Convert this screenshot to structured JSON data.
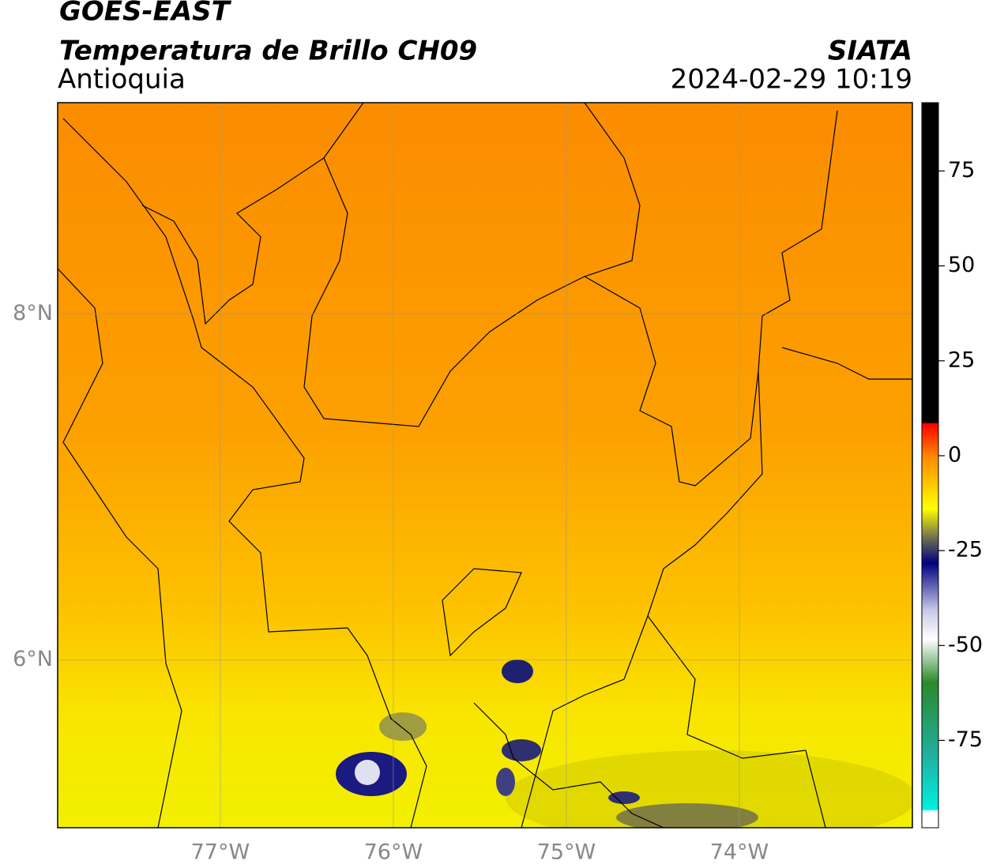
{
  "header": {
    "title": "GOES-EAST",
    "subtitle": "Temperatura de Brillo CH09",
    "region": "Antioquia",
    "source": "SIATA",
    "timestamp": "2024-02-29 10:19"
  },
  "map": {
    "xlim": [
      -77.94,
      -73
    ],
    "ylim": [
      5.03,
      9.22
    ],
    "xticks": [
      {
        "value": -77,
        "label": "77°W"
      },
      {
        "value": -76,
        "label": "76°W"
      },
      {
        "value": -75,
        "label": "75°W"
      },
      {
        "value": -74,
        "label": "74°W"
      }
    ],
    "yticks": [
      {
        "value": 6,
        "label": "6°N"
      },
      {
        "value": 8,
        "label": "8°N"
      }
    ],
    "grid": true
  },
  "colorbar": {
    "lim": [
      -98,
      93
    ],
    "ticks": [
      -75,
      -50,
      -25,
      0,
      25,
      50,
      75
    ]
  }
}
